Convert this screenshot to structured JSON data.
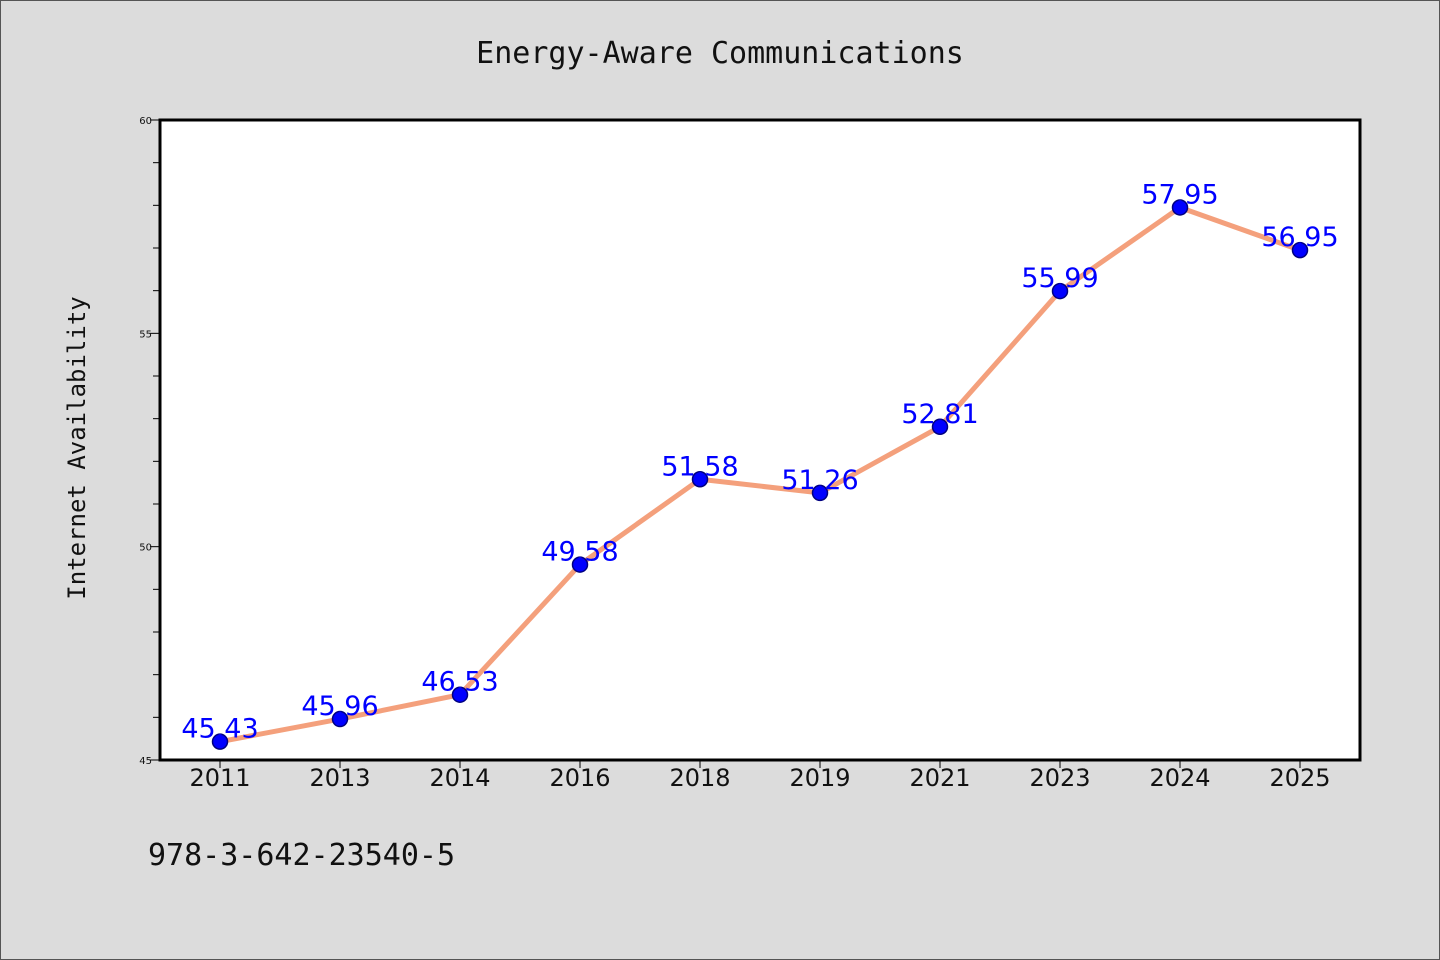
{
  "chart_data": {
    "type": "line",
    "title": "Energy-Aware Communications",
    "xlabel": "",
    "ylabel": "Internet Availability",
    "categories": [
      "2011",
      "2013",
      "2014",
      "2016",
      "2018",
      "2019",
      "2021",
      "2023",
      "2024",
      "2025"
    ],
    "series": [
      {
        "values": [
          45.43,
          45.96,
          46.53,
          49.58,
          51.58,
          51.26,
          52.81,
          55.99,
          57.95,
          56.95
        ],
        "labels": [
          "45.43",
          "45.96",
          "46.53",
          "49.58",
          "51.58",
          "51.26",
          "52.81",
          "55.99",
          "57.95",
          "56.95"
        ]
      }
    ],
    "ylim": [
      45,
      60
    ],
    "yticks": [
      "45",
      "50",
      "55",
      "60"
    ],
    "grid": false,
    "legend": "none",
    "colors": {
      "line": "#f4a07c",
      "marker": "#0000ff",
      "marker_edge": "#000080",
      "data_label": "#0000ff",
      "plot_background": "#ffffff",
      "figure_background": "#dcdcdc"
    }
  },
  "footer": {
    "isbn": "978-3-642-23540-5"
  }
}
